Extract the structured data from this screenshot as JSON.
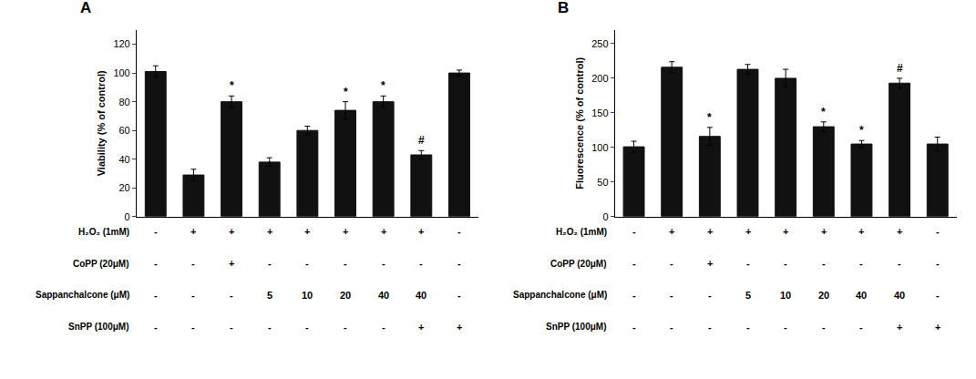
{
  "chart_data": [
    {
      "type": "bar",
      "title": "A",
      "ylabel": "Viability (% of control)",
      "categories": [
        null,
        null,
        null,
        null,
        null,
        null,
        null,
        null,
        null
      ],
      "values": [
        101,
        29,
        80,
        38,
        60,
        74,
        80,
        43,
        100
      ],
      "errors": [
        4,
        4,
        4,
        3,
        3,
        6,
        4,
        3,
        2
      ],
      "annotations": [
        null,
        null,
        "*",
        null,
        null,
        "*",
        "*",
        "#",
        null
      ],
      "color": "#111111",
      "ylim": [
        0,
        130
      ],
      "yticks": [
        0,
        20,
        40,
        60,
        80,
        100,
        120
      ],
      "grid": false,
      "tick_labels": "y",
      "rows": [
        {
          "label": "H₂O₂ (1mM)",
          "values": [
            "-",
            "+",
            "+",
            "+",
            "+",
            "+",
            "+",
            "+",
            "-"
          ]
        },
        {
          "label": "CoPP (20μM)",
          "values": [
            "-",
            "-",
            "+",
            "-",
            "-",
            "-",
            "-",
            "-",
            "-"
          ]
        },
        {
          "label": "Sappanchalcone (μM)",
          "values": [
            "-",
            "-",
            "-",
            "5",
            "10",
            "20",
            "40",
            "40",
            "-"
          ]
        },
        {
          "label": "SnPP (100μM)",
          "values": [
            "-",
            "-",
            "-",
            "-",
            "-",
            "-",
            "-",
            "+",
            "+"
          ]
        }
      ]
    },
    {
      "type": "bar",
      "title": "B",
      "ylabel": "Fluorescence (% of control)",
      "categories": [
        null,
        null,
        null,
        null,
        null,
        null,
        null,
        null,
        null
      ],
      "values": [
        101,
        216,
        116,
        213,
        200,
        130,
        105,
        193,
        105
      ],
      "errors": [
        8,
        8,
        13,
        7,
        13,
        7,
        5,
        7,
        10
      ],
      "annotations": [
        null,
        null,
        "*",
        null,
        null,
        "*",
        "*",
        "#",
        null
      ],
      "color": "#111111",
      "ylim": [
        0,
        270
      ],
      "yticks": [
        0,
        50,
        100,
        150,
        200,
        250
      ],
      "grid": false,
      "tick_labels": "y",
      "rows": [
        {
          "label": "H₂O₂ (1mM)",
          "values": [
            "-",
            "+",
            "+",
            "+",
            "+",
            "+",
            "+",
            "+",
            "-"
          ]
        },
        {
          "label": "CoPP (20μM)",
          "values": [
            "-",
            "-",
            "+",
            "-",
            "-",
            "-",
            "-",
            "-",
            "-"
          ]
        },
        {
          "label": "Sappanchalcone (μM)",
          "values": [
            "-",
            "-",
            "-",
            "5",
            "10",
            "20",
            "40",
            "40",
            "-"
          ]
        },
        {
          "label": "SnPP (100μM)",
          "values": [
            "-",
            "-",
            "-",
            "-",
            "-",
            "-",
            "-",
            "+",
            "+"
          ]
        }
      ]
    }
  ]
}
